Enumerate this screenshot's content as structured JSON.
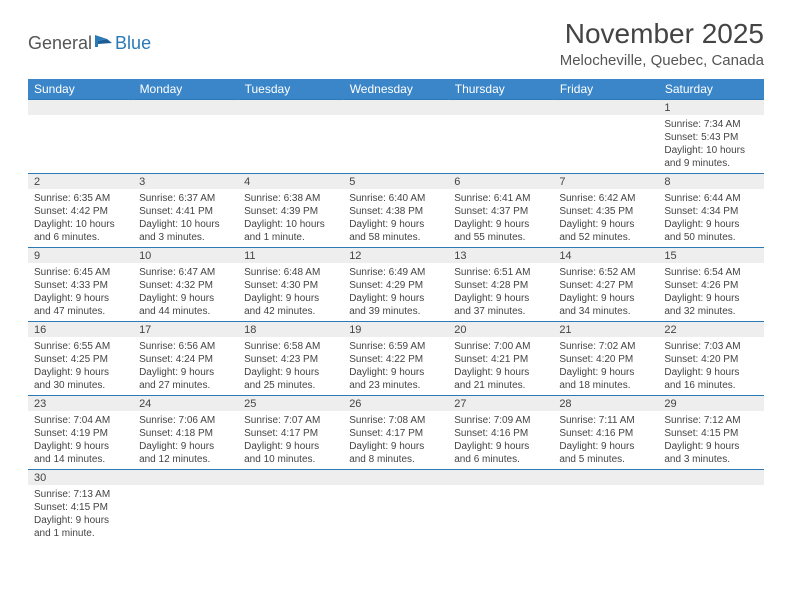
{
  "brand": {
    "textA": "General",
    "textB": "Blue"
  },
  "title": "November 2025",
  "location": "Melocheville, Quebec, Canada",
  "colors": {
    "header_bar": "#3a86c8",
    "row_divider": "#2a7ab8",
    "shade": "#eeeeee",
    "text": "#444444",
    "background": "#ffffff"
  },
  "weekdays": [
    "Sunday",
    "Monday",
    "Tuesday",
    "Wednesday",
    "Thursday",
    "Friday",
    "Saturday"
  ],
  "weeks": [
    [
      null,
      null,
      null,
      null,
      null,
      null,
      {
        "n": "1",
        "sunrise": "7:34 AM",
        "sunset": "5:43 PM",
        "daylight": "10 hours and 9 minutes."
      }
    ],
    [
      {
        "n": "2",
        "sunrise": "6:35 AM",
        "sunset": "4:42 PM",
        "daylight": "10 hours and 6 minutes."
      },
      {
        "n": "3",
        "sunrise": "6:37 AM",
        "sunset": "4:41 PM",
        "daylight": "10 hours and 3 minutes."
      },
      {
        "n": "4",
        "sunrise": "6:38 AM",
        "sunset": "4:39 PM",
        "daylight": "10 hours and 1 minute."
      },
      {
        "n": "5",
        "sunrise": "6:40 AM",
        "sunset": "4:38 PM",
        "daylight": "9 hours and 58 minutes."
      },
      {
        "n": "6",
        "sunrise": "6:41 AM",
        "sunset": "4:37 PM",
        "daylight": "9 hours and 55 minutes."
      },
      {
        "n": "7",
        "sunrise": "6:42 AM",
        "sunset": "4:35 PM",
        "daylight": "9 hours and 52 minutes."
      },
      {
        "n": "8",
        "sunrise": "6:44 AM",
        "sunset": "4:34 PM",
        "daylight": "9 hours and 50 minutes."
      }
    ],
    [
      {
        "n": "9",
        "sunrise": "6:45 AM",
        "sunset": "4:33 PM",
        "daylight": "9 hours and 47 minutes."
      },
      {
        "n": "10",
        "sunrise": "6:47 AM",
        "sunset": "4:32 PM",
        "daylight": "9 hours and 44 minutes."
      },
      {
        "n": "11",
        "sunrise": "6:48 AM",
        "sunset": "4:30 PM",
        "daylight": "9 hours and 42 minutes."
      },
      {
        "n": "12",
        "sunrise": "6:49 AM",
        "sunset": "4:29 PM",
        "daylight": "9 hours and 39 minutes."
      },
      {
        "n": "13",
        "sunrise": "6:51 AM",
        "sunset": "4:28 PM",
        "daylight": "9 hours and 37 minutes."
      },
      {
        "n": "14",
        "sunrise": "6:52 AM",
        "sunset": "4:27 PM",
        "daylight": "9 hours and 34 minutes."
      },
      {
        "n": "15",
        "sunrise": "6:54 AM",
        "sunset": "4:26 PM",
        "daylight": "9 hours and 32 minutes."
      }
    ],
    [
      {
        "n": "16",
        "sunrise": "6:55 AM",
        "sunset": "4:25 PM",
        "daylight": "9 hours and 30 minutes."
      },
      {
        "n": "17",
        "sunrise": "6:56 AM",
        "sunset": "4:24 PM",
        "daylight": "9 hours and 27 minutes."
      },
      {
        "n": "18",
        "sunrise": "6:58 AM",
        "sunset": "4:23 PM",
        "daylight": "9 hours and 25 minutes."
      },
      {
        "n": "19",
        "sunrise": "6:59 AM",
        "sunset": "4:22 PM",
        "daylight": "9 hours and 23 minutes."
      },
      {
        "n": "20",
        "sunrise": "7:00 AM",
        "sunset": "4:21 PM",
        "daylight": "9 hours and 21 minutes."
      },
      {
        "n": "21",
        "sunrise": "7:02 AM",
        "sunset": "4:20 PM",
        "daylight": "9 hours and 18 minutes."
      },
      {
        "n": "22",
        "sunrise": "7:03 AM",
        "sunset": "4:20 PM",
        "daylight": "9 hours and 16 minutes."
      }
    ],
    [
      {
        "n": "23",
        "sunrise": "7:04 AM",
        "sunset": "4:19 PM",
        "daylight": "9 hours and 14 minutes."
      },
      {
        "n": "24",
        "sunrise": "7:06 AM",
        "sunset": "4:18 PM",
        "daylight": "9 hours and 12 minutes."
      },
      {
        "n": "25",
        "sunrise": "7:07 AM",
        "sunset": "4:17 PM",
        "daylight": "9 hours and 10 minutes."
      },
      {
        "n": "26",
        "sunrise": "7:08 AM",
        "sunset": "4:17 PM",
        "daylight": "9 hours and 8 minutes."
      },
      {
        "n": "27",
        "sunrise": "7:09 AM",
        "sunset": "4:16 PM",
        "daylight": "9 hours and 6 minutes."
      },
      {
        "n": "28",
        "sunrise": "7:11 AM",
        "sunset": "4:16 PM",
        "daylight": "9 hours and 5 minutes."
      },
      {
        "n": "29",
        "sunrise": "7:12 AM",
        "sunset": "4:15 PM",
        "daylight": "9 hours and 3 minutes."
      }
    ],
    [
      {
        "n": "30",
        "sunrise": "7:13 AM",
        "sunset": "4:15 PM",
        "daylight": "9 hours and 1 minute."
      },
      null,
      null,
      null,
      null,
      null,
      null
    ]
  ],
  "labels": {
    "sunrise_prefix": "Sunrise: ",
    "sunset_prefix": "Sunset: ",
    "daylight_prefix": "Daylight: "
  }
}
